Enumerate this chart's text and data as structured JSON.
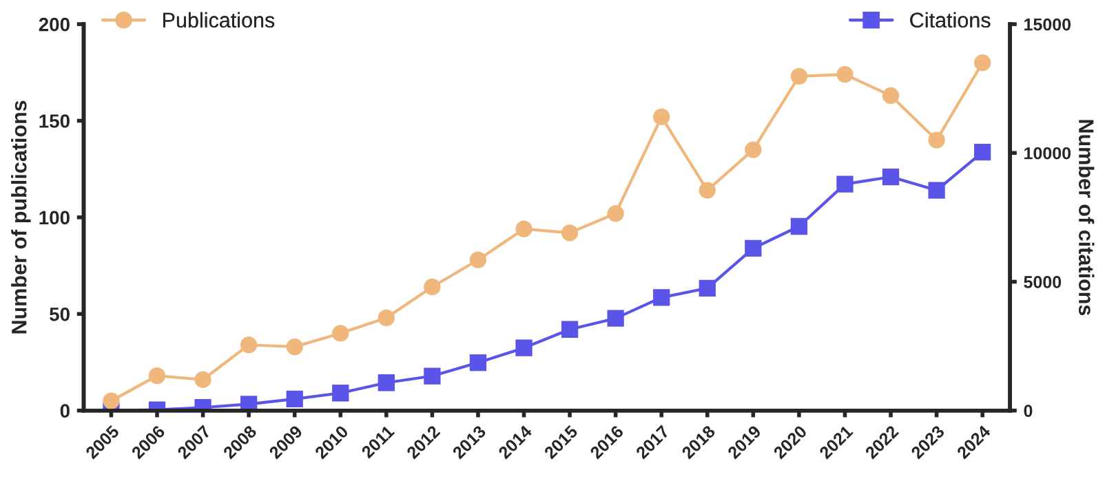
{
  "chart_data": {
    "type": "line",
    "xlabel": null,
    "ylabel": "Number of publications",
    "y2label": "Number of citations",
    "categories": [
      "2005",
      "2006",
      "2007",
      "2008",
      "2009",
      "2010",
      "2011",
      "2012",
      "2013",
      "2014",
      "2015",
      "2016",
      "2017",
      "2018",
      "2019",
      "2020",
      "2021",
      "2022",
      "2023",
      "2024"
    ],
    "series": [
      {
        "name": "Publications",
        "color": "#f0b77c",
        "marker": "circle",
        "values": [
          5,
          18,
          16,
          34,
          33,
          40,
          48,
          64,
          78,
          94,
          92,
          102,
          152,
          114,
          135,
          173,
          174,
          163,
          140,
          180
        ]
      },
      {
        "name": "Citations",
        "color": "#5a55e8",
        "marker": "square",
        "axis": "y2",
        "values": [
          0,
          30,
          120,
          250,
          450,
          680,
          1080,
          1340,
          1860,
          2430,
          3150,
          3580,
          4390,
          4750,
          6300,
          7150,
          8790,
          9070,
          8550,
          10030
        ]
      }
    ],
    "ylim": [
      0,
      200
    ],
    "yticks": [
      0,
      50,
      100,
      150,
      200
    ],
    "y2lim": [
      0,
      15000
    ],
    "y2ticks": [
      0,
      5000,
      10000,
      15000
    ],
    "grid": false,
    "legend": "top",
    "line_style": "solid"
  }
}
